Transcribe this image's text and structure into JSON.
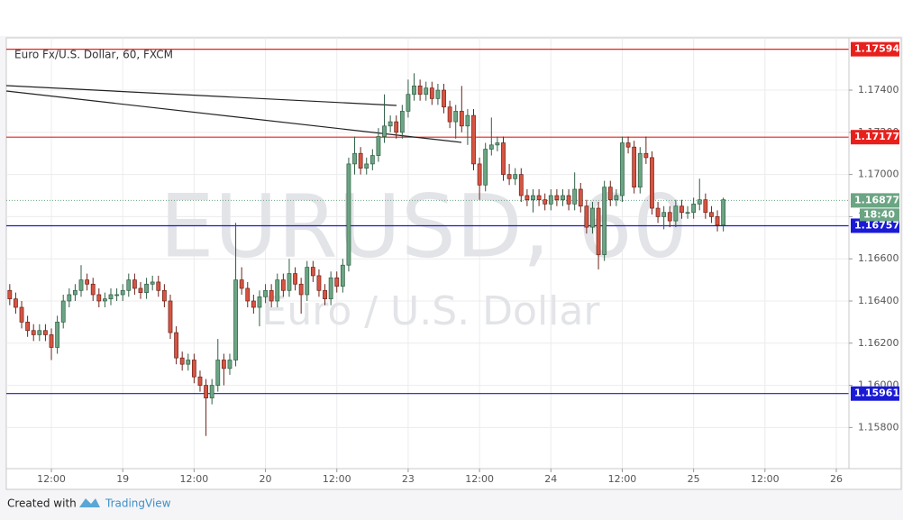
{
  "chart_data": {
    "type": "candlestick",
    "title": "Euro Fx/U.S. Dollar, 60, FXCM",
    "watermark": "EURUSD, 60",
    "watermark_subtitle": "Euro / U.S. Dollar",
    "footer": {
      "prefix": "Created with",
      "brand": "TradingView"
    },
    "grid": true,
    "up_color": "#6ba583",
    "down_color": "#d75442",
    "xlim": [
      4.42,
      146.12
    ],
    "xticks": [
      {
        "value": 12,
        "label": "12:00"
      },
      {
        "value": 24,
        "label": "19"
      },
      {
        "value": 36,
        "label": "12:00"
      },
      {
        "value": 48,
        "label": "20"
      },
      {
        "value": 60,
        "label": "12:00"
      },
      {
        "value": 72,
        "label": "23"
      },
      {
        "value": 84,
        "label": "12:00"
      },
      {
        "value": 96,
        "label": "24"
      },
      {
        "value": 108,
        "label": "12:00"
      },
      {
        "value": 120,
        "label": "25"
      },
      {
        "value": 132,
        "label": "12:00"
      },
      {
        "value": 144,
        "label": "26"
      }
    ],
    "ylim": [
      1.15605,
      1.17648
    ],
    "yticks": [
      {
        "value": 1.158,
        "label": "1.15800"
      },
      {
        "value": 1.16,
        "label": "1.16000"
      },
      {
        "value": 1.162,
        "label": "1.16200"
      },
      {
        "value": 1.164,
        "label": "1.16400"
      },
      {
        "value": 1.166,
        "label": "1.16600"
      },
      {
        "value": 1.168,
        "label": "1.16800"
      },
      {
        "value": 1.17,
        "label": "1.17000"
      },
      {
        "value": 1.172,
        "label": "1.17200"
      },
      {
        "value": 1.174,
        "label": "1.17400"
      }
    ],
    "hlines": [
      {
        "value": 1.17594,
        "label": "1.17594",
        "color": "#e8201c"
      },
      {
        "value": 1.17177,
        "label": "1.17177",
        "color": "#e8201c"
      },
      {
        "value": 1.16757,
        "label": "1.16757",
        "color": "#1a1ad6"
      },
      {
        "value": 1.15961,
        "label": "1.15961",
        "color": "#1a1ad6"
      }
    ],
    "last_price": {
      "value": 1.16877,
      "label": "1.16877",
      "countdown": "18:40",
      "color": "#6ba583"
    },
    "x": [
      5,
      6,
      7,
      8,
      9,
      10,
      11,
      12,
      13,
      14,
      15,
      16,
      17,
      18,
      19,
      20,
      21,
      22,
      23,
      24,
      25,
      26,
      27,
      28,
      29,
      30,
      31,
      32,
      33,
      34,
      35,
      36,
      37,
      38,
      39,
      40,
      41,
      42,
      43,
      44,
      45,
      46,
      47,
      48,
      49,
      50,
      51,
      52,
      53,
      54,
      55,
      56,
      57,
      58,
      59,
      60,
      61,
      62,
      63,
      64,
      65,
      66,
      67,
      68,
      69,
      70,
      71,
      72,
      73,
      74,
      75,
      76,
      77,
      78,
      79,
      80,
      81,
      82,
      83,
      84,
      85,
      86,
      87,
      88,
      89,
      90,
      91,
      92,
      93,
      94,
      95,
      96,
      97,
      98,
      99,
      100,
      101,
      102,
      103,
      104,
      105,
      106,
      107,
      108,
      109,
      110,
      111,
      112,
      113,
      114,
      115,
      116,
      117,
      118,
      119,
      120,
      121,
      122,
      123,
      124,
      125
    ],
    "open": [
      1.1645,
      1.1641,
      1.1637,
      1.163,
      1.1626,
      1.1624,
      1.1626,
      1.1624,
      1.1618,
      1.163,
      1.164,
      1.1643,
      1.1645,
      1.165,
      1.1648,
      1.1643,
      1.164,
      1.1641,
      1.1643,
      1.1643,
      1.1645,
      1.165,
      1.1646,
      1.1644,
      1.1648,
      1.1649,
      1.1645,
      1.164,
      1.1625,
      1.1613,
      1.161,
      1.1612,
      1.1604,
      1.16,
      1.1594,
      1.16,
      1.1612,
      1.1608,
      1.1612,
      1.165,
      1.1646,
      1.164,
      1.1637,
      1.1642,
      1.1645,
      1.164,
      1.165,
      1.1645,
      1.1653,
      1.1648,
      1.1643,
      1.1656,
      1.1652,
      1.1645,
      1.1641,
      1.1651,
      1.1647,
      1.1657,
      1.1705,
      1.171,
      1.1703,
      1.1705,
      1.1709,
      1.1718,
      1.1723,
      1.1725,
      1.172,
      1.173,
      1.1738,
      1.1742,
      1.1738,
      1.1741,
      1.1736,
      1.174,
      1.1732,
      1.1725,
      1.173,
      1.1723,
      1.1728,
      1.1705,
      1.1695,
      1.1712,
      1.1714,
      1.1715,
      1.17,
      1.1698,
      1.17,
      1.169,
      1.1688,
      1.169,
      1.1688,
      1.1686,
      1.169,
      1.1688,
      1.169,
      1.1686,
      1.1693,
      1.1685,
      1.1675,
      1.1684,
      1.1662,
      1.1694,
      1.1688,
      1.169,
      1.1715,
      1.1713,
      1.1694,
      1.171,
      1.1708,
      1.1684,
      1.168,
      1.1682,
      1.1678,
      1.1685,
      1.1682,
      1.1682,
      1.1686,
      1.1688,
      1.1682,
      1.168,
      1.1676
    ],
    "high": [
      1.1648,
      1.1644,
      1.164,
      1.1633,
      1.1629,
      1.1629,
      1.1629,
      1.1627,
      1.1633,
      1.1643,
      1.1646,
      1.1648,
      1.1657,
      1.1653,
      1.1651,
      1.1646,
      1.1644,
      1.1646,
      1.1646,
      1.1648,
      1.1653,
      1.1653,
      1.1649,
      1.1651,
      1.1652,
      1.1652,
      1.1648,
      1.1643,
      1.1628,
      1.1616,
      1.1615,
      1.1615,
      1.1607,
      1.1603,
      1.1603,
      1.1622,
      1.1615,
      1.1615,
      1.1677,
      1.1656,
      1.1649,
      1.1643,
      1.1645,
      1.1648,
      1.1648,
      1.1653,
      1.1653,
      1.166,
      1.1656,
      1.1651,
      1.1659,
      1.1659,
      1.1655,
      1.1648,
      1.1654,
      1.1654,
      1.166,
      1.1708,
      1.1718,
      1.1713,
      1.1708,
      1.1712,
      1.1722,
      1.1738,
      1.1728,
      1.1728,
      1.1733,
      1.1745,
      1.1748,
      1.1745,
      1.1744,
      1.1744,
      1.1743,
      1.1743,
      1.1735,
      1.1733,
      1.1742,
      1.1731,
      1.1731,
      1.1708,
      1.1715,
      1.1727,
      1.1718,
      1.1718,
      1.1705,
      1.1703,
      1.1703,
      1.1693,
      1.1693,
      1.1693,
      1.1691,
      1.1693,
      1.1693,
      1.1693,
      1.1693,
      1.1701,
      1.1696,
      1.1688,
      1.1687,
      1.1687,
      1.1697,
      1.1697,
      1.1693,
      1.1718,
      1.1718,
      1.1716,
      1.1713,
      1.1718,
      1.1711,
      1.1687,
      1.1685,
      1.1685,
      1.1688,
      1.1688,
      1.1685,
      1.1689,
      1.1698,
      1.1691,
      1.1685,
      1.1683,
      1.1689
    ],
    "low": [
      1.1638,
      1.1634,
      1.1627,
      1.1623,
      1.1621,
      1.1621,
      1.1621,
      1.1612,
      1.1615,
      1.1627,
      1.1637,
      1.164,
      1.1642,
      1.1645,
      1.164,
      1.1637,
      1.1637,
      1.1638,
      1.164,
      1.164,
      1.1642,
      1.1643,
      1.1641,
      1.1641,
      1.1645,
      1.1642,
      1.1637,
      1.1622,
      1.161,
      1.1607,
      1.1607,
      1.1601,
      1.1597,
      1.1576,
      1.1591,
      1.1597,
      1.16,
      1.1605,
      1.1609,
      1.1643,
      1.1637,
      1.1634,
      1.1628,
      1.1639,
      1.1637,
      1.1637,
      1.1642,
      1.1642,
      1.1645,
      1.1634,
      1.164,
      1.1649,
      1.1642,
      1.1638,
      1.1638,
      1.1644,
      1.1644,
      1.1654,
      1.17,
      1.17,
      1.17,
      1.1702,
      1.1706,
      1.1715,
      1.172,
      1.1717,
      1.1717,
      1.1727,
      1.1735,
      1.1735,
      1.1735,
      1.1733,
      1.1733,
      1.1729,
      1.1722,
      1.1717,
      1.172,
      1.1714,
      1.1702,
      1.1688,
      1.1692,
      1.1709,
      1.1711,
      1.1697,
      1.1695,
      1.1695,
      1.1687,
      1.1685,
      1.1682,
      1.1685,
      1.1683,
      1.1683,
      1.1685,
      1.1685,
      1.1683,
      1.1683,
      1.1682,
      1.1672,
      1.1672,
      1.1655,
      1.1659,
      1.1685,
      1.1685,
      1.1687,
      1.171,
      1.1691,
      1.1691,
      1.1705,
      1.1681,
      1.1677,
      1.1674,
      1.1675,
      1.1675,
      1.1679,
      1.1679,
      1.1679,
      1.1683,
      1.1679,
      1.1677,
      1.1673,
      1.1673
    ],
    "close": [
      1.1641,
      1.1637,
      1.163,
      1.1626,
      1.1624,
      1.1626,
      1.1624,
      1.1618,
      1.163,
      1.164,
      1.1643,
      1.1645,
      1.165,
      1.1648,
      1.1643,
      1.164,
      1.1641,
      1.1643,
      1.1643,
      1.1645,
      1.165,
      1.1646,
      1.1644,
      1.1648,
      1.1649,
      1.1645,
      1.164,
      1.1625,
      1.1613,
      1.161,
      1.1612,
      1.1604,
      1.16,
      1.1594,
      1.16,
      1.1612,
      1.1608,
      1.1612,
      1.165,
      1.1646,
      1.164,
      1.1637,
      1.1642,
      1.1645,
      1.164,
      1.165,
      1.1645,
      1.1653,
      1.1648,
      1.1643,
      1.1656,
      1.1652,
      1.1645,
      1.1641,
      1.1651,
      1.1647,
      1.1657,
      1.1705,
      1.171,
      1.1703,
      1.1705,
      1.1709,
      1.1718,
      1.1723,
      1.1725,
      1.172,
      1.173,
      1.1738,
      1.1742,
      1.1738,
      1.1741,
      1.1736,
      1.174,
      1.1732,
      1.1725,
      1.173,
      1.1723,
      1.1728,
      1.1705,
      1.1695,
      1.1712,
      1.1714,
      1.1715,
      1.17,
      1.1698,
      1.17,
      1.169,
      1.1688,
      1.169,
      1.1688,
      1.1686,
      1.169,
      1.1688,
      1.169,
      1.1686,
      1.1693,
      1.1685,
      1.1675,
      1.1684,
      1.1662,
      1.1694,
      1.1688,
      1.169,
      1.1715,
      1.1713,
      1.1694,
      1.171,
      1.1708,
      1.1684,
      1.168,
      1.1682,
      1.1678,
      1.1685,
      1.1682,
      1.1682,
      1.1686,
      1.1688,
      1.1682,
      1.168,
      1.1676,
      1.1688
    ]
  }
}
